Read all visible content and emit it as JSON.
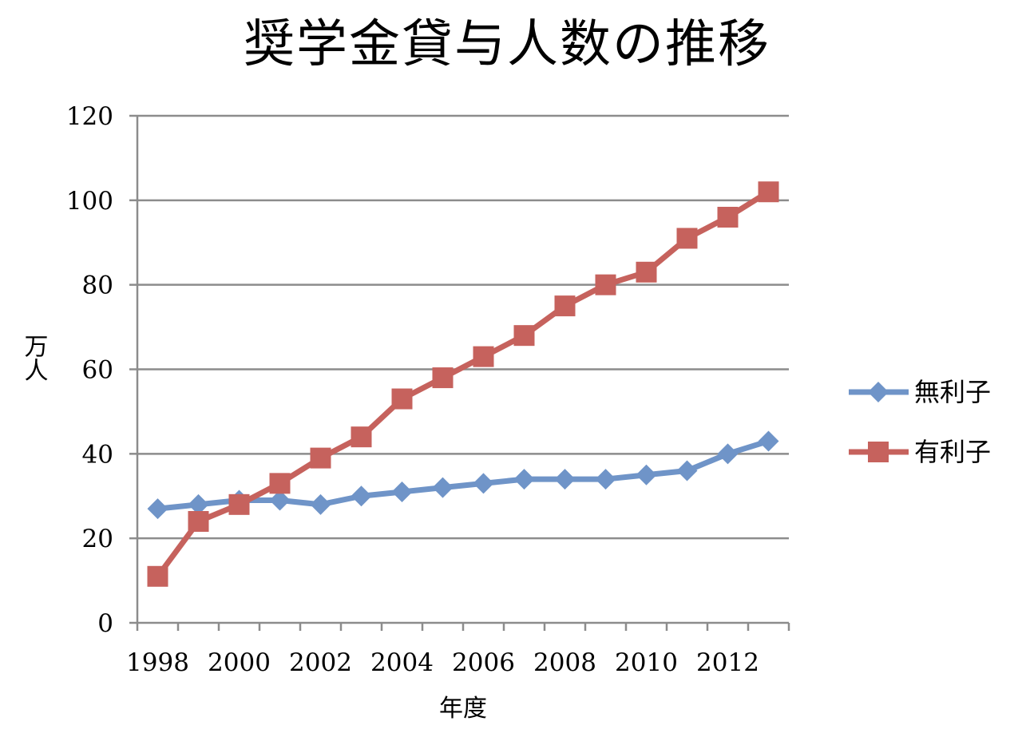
{
  "chart_data": {
    "type": "line",
    "title": "奨学金貸与人数の推移",
    "xlabel": "年度",
    "ylabel": "万人",
    "ylim": [
      0,
      120
    ],
    "yticks": [
      0,
      20,
      40,
      60,
      80,
      100,
      120
    ],
    "xtick_labels": [
      "1998",
      "2000",
      "2002",
      "2004",
      "2006",
      "2008",
      "2010",
      "2012"
    ],
    "x": [
      1998,
      1999,
      2000,
      2001,
      2002,
      2003,
      2004,
      2005,
      2006,
      2007,
      2008,
      2009,
      2010,
      2011,
      2012,
      2013
    ],
    "grid": true,
    "legend_position": "right",
    "series": [
      {
        "name": "無利子",
        "color": "#6f94c8",
        "marker": "diamond",
        "values": [
          27,
          28,
          29,
          29,
          28,
          30,
          31,
          32,
          33,
          34,
          34,
          34,
          35,
          36,
          40,
          43
        ]
      },
      {
        "name": "有利子",
        "color": "#c6625d",
        "marker": "square",
        "values": [
          11,
          24,
          28,
          33,
          39,
          44,
          53,
          58,
          63,
          68,
          75,
          80,
          83,
          91,
          96,
          102
        ]
      }
    ]
  }
}
